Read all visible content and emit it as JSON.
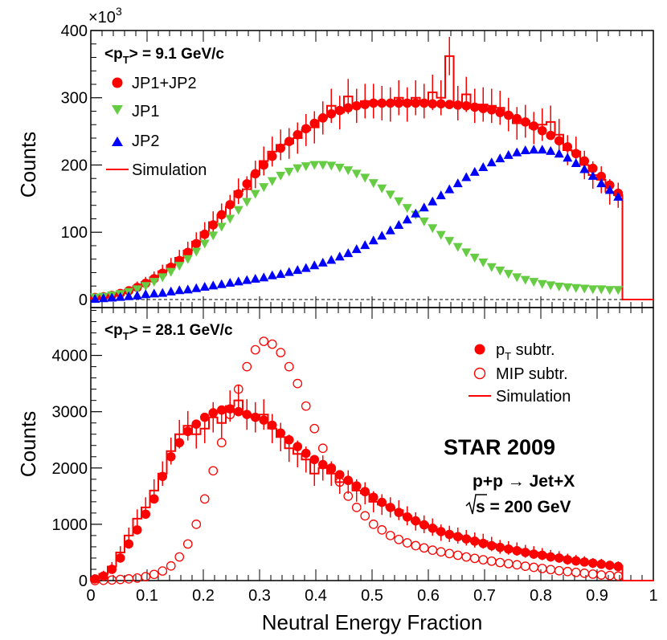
{
  "chart_data": [
    {
      "type": "scatter",
      "panel": "top",
      "ylabel": "Counts",
      "y_multiplier_label": "×10",
      "y_multiplier_exp": "3",
      "ylim": [
        -12,
        400
      ],
      "y_ticks": [
        0,
        100,
        200,
        300,
        400
      ],
      "annotation": {
        "prefix": "<p",
        "sub": "T",
        "suffix": "> = 9.1 GeV/c"
      },
      "legend_position": "top-left",
      "x": [
        0.0075,
        0.0225,
        0.0375,
        0.0525,
        0.0675,
        0.0825,
        0.0975,
        0.1125,
        0.1275,
        0.1425,
        0.1575,
        0.1725,
        0.1875,
        0.2025,
        0.2175,
        0.2325,
        0.2475,
        0.2625,
        0.2775,
        0.2925,
        0.3075,
        0.3225,
        0.3375,
        0.3525,
        0.3675,
        0.3825,
        0.3975,
        0.4125,
        0.4275,
        0.4425,
        0.4575,
        0.4725,
        0.4875,
        0.5025,
        0.5175,
        0.5325,
        0.5475,
        0.5625,
        0.5775,
        0.5925,
        0.6075,
        0.6225,
        0.6375,
        0.6525,
        0.6675,
        0.6825,
        0.6975,
        0.7125,
        0.7275,
        0.7425,
        0.7575,
        0.7725,
        0.7875,
        0.8025,
        0.8175,
        0.8325,
        0.8475,
        0.8625,
        0.8775,
        0.8925,
        0.9075,
        0.9225,
        0.9375
      ],
      "series": [
        {
          "name": "JP1+JP2",
          "marker": "circle-filled",
          "color": "#ff0000",
          "values": [
            3,
            4,
            6,
            9,
            13,
            18,
            24,
            31,
            39,
            48,
            58,
            70,
            83,
            97,
            111,
            126,
            141,
            157,
            172,
            187,
            200,
            213,
            225,
            235,
            245,
            254,
            262,
            270,
            276,
            281,
            285,
            288,
            290,
            292,
            292,
            292,
            292,
            292,
            292,
            292,
            291,
            291,
            290,
            289,
            288,
            286,
            284,
            282,
            278,
            274,
            269,
            264,
            258,
            251,
            244,
            236,
            227,
            217,
            206,
            195,
            183,
            170,
            158
          ]
        },
        {
          "name": "JP1",
          "marker": "triangle-down",
          "color": "#66cc44",
          "values": [
            3,
            4,
            6,
            8,
            11,
            15,
            20,
            26,
            33,
            41,
            50,
            60,
            71,
            83,
            95,
            108,
            120,
            133,
            145,
            157,
            167,
            176,
            184,
            190,
            195,
            198,
            200,
            200,
            199,
            196,
            192,
            187,
            181,
            173,
            165,
            156,
            146,
            136,
            126,
            116,
            106,
            96,
            87,
            78,
            70,
            62,
            55,
            48,
            43,
            38,
            33,
            29,
            26,
            23,
            21,
            19,
            18,
            17,
            16,
            15,
            15,
            14,
            14
          ]
        },
        {
          "name": "JP2",
          "marker": "triangle-up",
          "color": "#0000ff",
          "values": [
            1,
            2,
            3,
            4,
            5,
            6,
            8,
            9,
            10,
            12,
            14,
            15,
            17,
            19,
            21,
            23,
            25,
            27,
            29,
            31,
            33,
            36,
            38,
            41,
            44,
            47,
            51,
            55,
            59,
            64,
            69,
            75,
            81,
            88,
            95,
            103,
            111,
            119,
            128,
            137,
            146,
            155,
            164,
            173,
            182,
            190,
            197,
            204,
            210,
            215,
            219,
            222,
            223,
            223,
            221,
            217,
            211,
            203,
            194,
            184,
            173,
            163,
            153
          ]
        },
        {
          "name": "Simulation",
          "marker": "histogram",
          "color": "#ff0000",
          "values": [
            2,
            4,
            7,
            10,
            14,
            20,
            26,
            33,
            42,
            51,
            62,
            73,
            86,
            100,
            115,
            126,
            138,
            161,
            164,
            186,
            206,
            220,
            230,
            232,
            240,
            252,
            256,
            270,
            288,
            278,
            302,
            288,
            295,
            295,
            292,
            290,
            300,
            290,
            300,
            295,
            308,
            300,
            362,
            292,
            305,
            288,
            290,
            288,
            285,
            275,
            262,
            265,
            255,
            260,
            264,
            245,
            222,
            220,
            200,
            185,
            178,
            160,
            155
          ]
        }
      ]
    },
    {
      "type": "scatter",
      "panel": "bottom",
      "xlabel": "Neutral Energy Fraction",
      "ylabel": "Counts",
      "xlim": [
        0,
        1
      ],
      "ylim": [
        0,
        4850
      ],
      "x_ticks": [
        0,
        0.1,
        0.2,
        0.3,
        0.4,
        0.5,
        0.6,
        0.7,
        0.8,
        0.9,
        1
      ],
      "x_tick_labels": [
        "0",
        "0.1",
        "0.2",
        "0.3",
        "0.4",
        "0.5",
        "0.6",
        "0.7",
        "0.8",
        "0.9",
        "1"
      ],
      "y_ticks": [
        0,
        1000,
        2000,
        3000,
        4000
      ],
      "annotation": {
        "prefix": "<p",
        "sub": "T",
        "suffix": "> = 28.1 GeV/c"
      },
      "legend_position": "top-right",
      "text_annotations": {
        "experiment": "STAR 2009",
        "process": "p+p → Jet+X",
        "energy": "s = 200 GeV"
      },
      "x": [
        0.0075,
        0.0225,
        0.0375,
        0.0525,
        0.0675,
        0.0825,
        0.0975,
        0.1125,
        0.1275,
        0.1425,
        0.1575,
        0.1725,
        0.1875,
        0.2025,
        0.2175,
        0.2325,
        0.2475,
        0.2625,
        0.2775,
        0.2925,
        0.3075,
        0.3225,
        0.3375,
        0.3525,
        0.3675,
        0.3825,
        0.3975,
        0.4125,
        0.4275,
        0.4425,
        0.4575,
        0.4725,
        0.4875,
        0.5025,
        0.5175,
        0.5325,
        0.5475,
        0.5625,
        0.5775,
        0.5925,
        0.6075,
        0.6225,
        0.6375,
        0.6525,
        0.6675,
        0.6825,
        0.6975,
        0.7125,
        0.7275,
        0.7425,
        0.7575,
        0.7725,
        0.7875,
        0.8025,
        0.8175,
        0.8325,
        0.8475,
        0.8625,
        0.8775,
        0.8925,
        0.9075,
        0.9225,
        0.9375
      ],
      "series": [
        {
          "name": "p_T subtr.",
          "label_prefix": "p",
          "label_sub": "T",
          "label_suffix": " subtr.",
          "marker": "circle-filled",
          "color": "#ff0000",
          "values": [
            30,
            80,
            200,
            400,
            650,
            900,
            1180,
            1450,
            1850,
            2200,
            2450,
            2650,
            2780,
            2900,
            2980,
            3030,
            3050,
            3000,
            2950,
            2900,
            2850,
            2760,
            2620,
            2500,
            2380,
            2260,
            2150,
            2060,
            1980,
            1880,
            1780,
            1680,
            1580,
            1480,
            1390,
            1300,
            1210,
            1130,
            1060,
            990,
            930,
            870,
            820,
            780,
            740,
            700,
            660,
            620,
            590,
            560,
            530,
            500,
            470,
            450,
            420,
            400,
            370,
            350,
            330,
            310,
            290,
            270,
            250
          ]
        },
        {
          "name": "MIP subtr.",
          "marker": "circle-open",
          "color": "#ff0000",
          "values": [
            0,
            5,
            10,
            20,
            30,
            45,
            70,
            110,
            170,
            260,
            420,
            650,
            1000,
            1450,
            1950,
            2450,
            2950,
            3400,
            3800,
            4100,
            4250,
            4200,
            4050,
            3800,
            3500,
            3100,
            2700,
            2350,
            2000,
            1750,
            1500,
            1300,
            1150,
            1000,
            900,
            800,
            730,
            670,
            620,
            580,
            540,
            510,
            480,
            450,
            420,
            395,
            370,
            345,
            320,
            300,
            280,
            255,
            235,
            215,
            195,
            175,
            160,
            145,
            130,
            115,
            100,
            90,
            80
          ]
        },
        {
          "name": "Simulation",
          "marker": "histogram",
          "color": "#ff0000",
          "values": [
            50,
            120,
            250,
            500,
            800,
            1100,
            1300,
            1600,
            1900,
            2300,
            2600,
            2750,
            2600,
            2700,
            2900,
            2800,
            3100,
            3200,
            2950,
            2900,
            2950,
            2700,
            2550,
            2350,
            2250,
            2150,
            1900,
            2000,
            1900,
            1750,
            1750,
            1600,
            1550,
            1400,
            1350,
            1300,
            1250,
            1150,
            1050,
            1000,
            950,
            850,
            830,
            800,
            760,
            720,
            700,
            650,
            600,
            580,
            560,
            520,
            500,
            470,
            440,
            420,
            380,
            360,
            340,
            310,
            300,
            270,
            260
          ]
        }
      ]
    }
  ]
}
